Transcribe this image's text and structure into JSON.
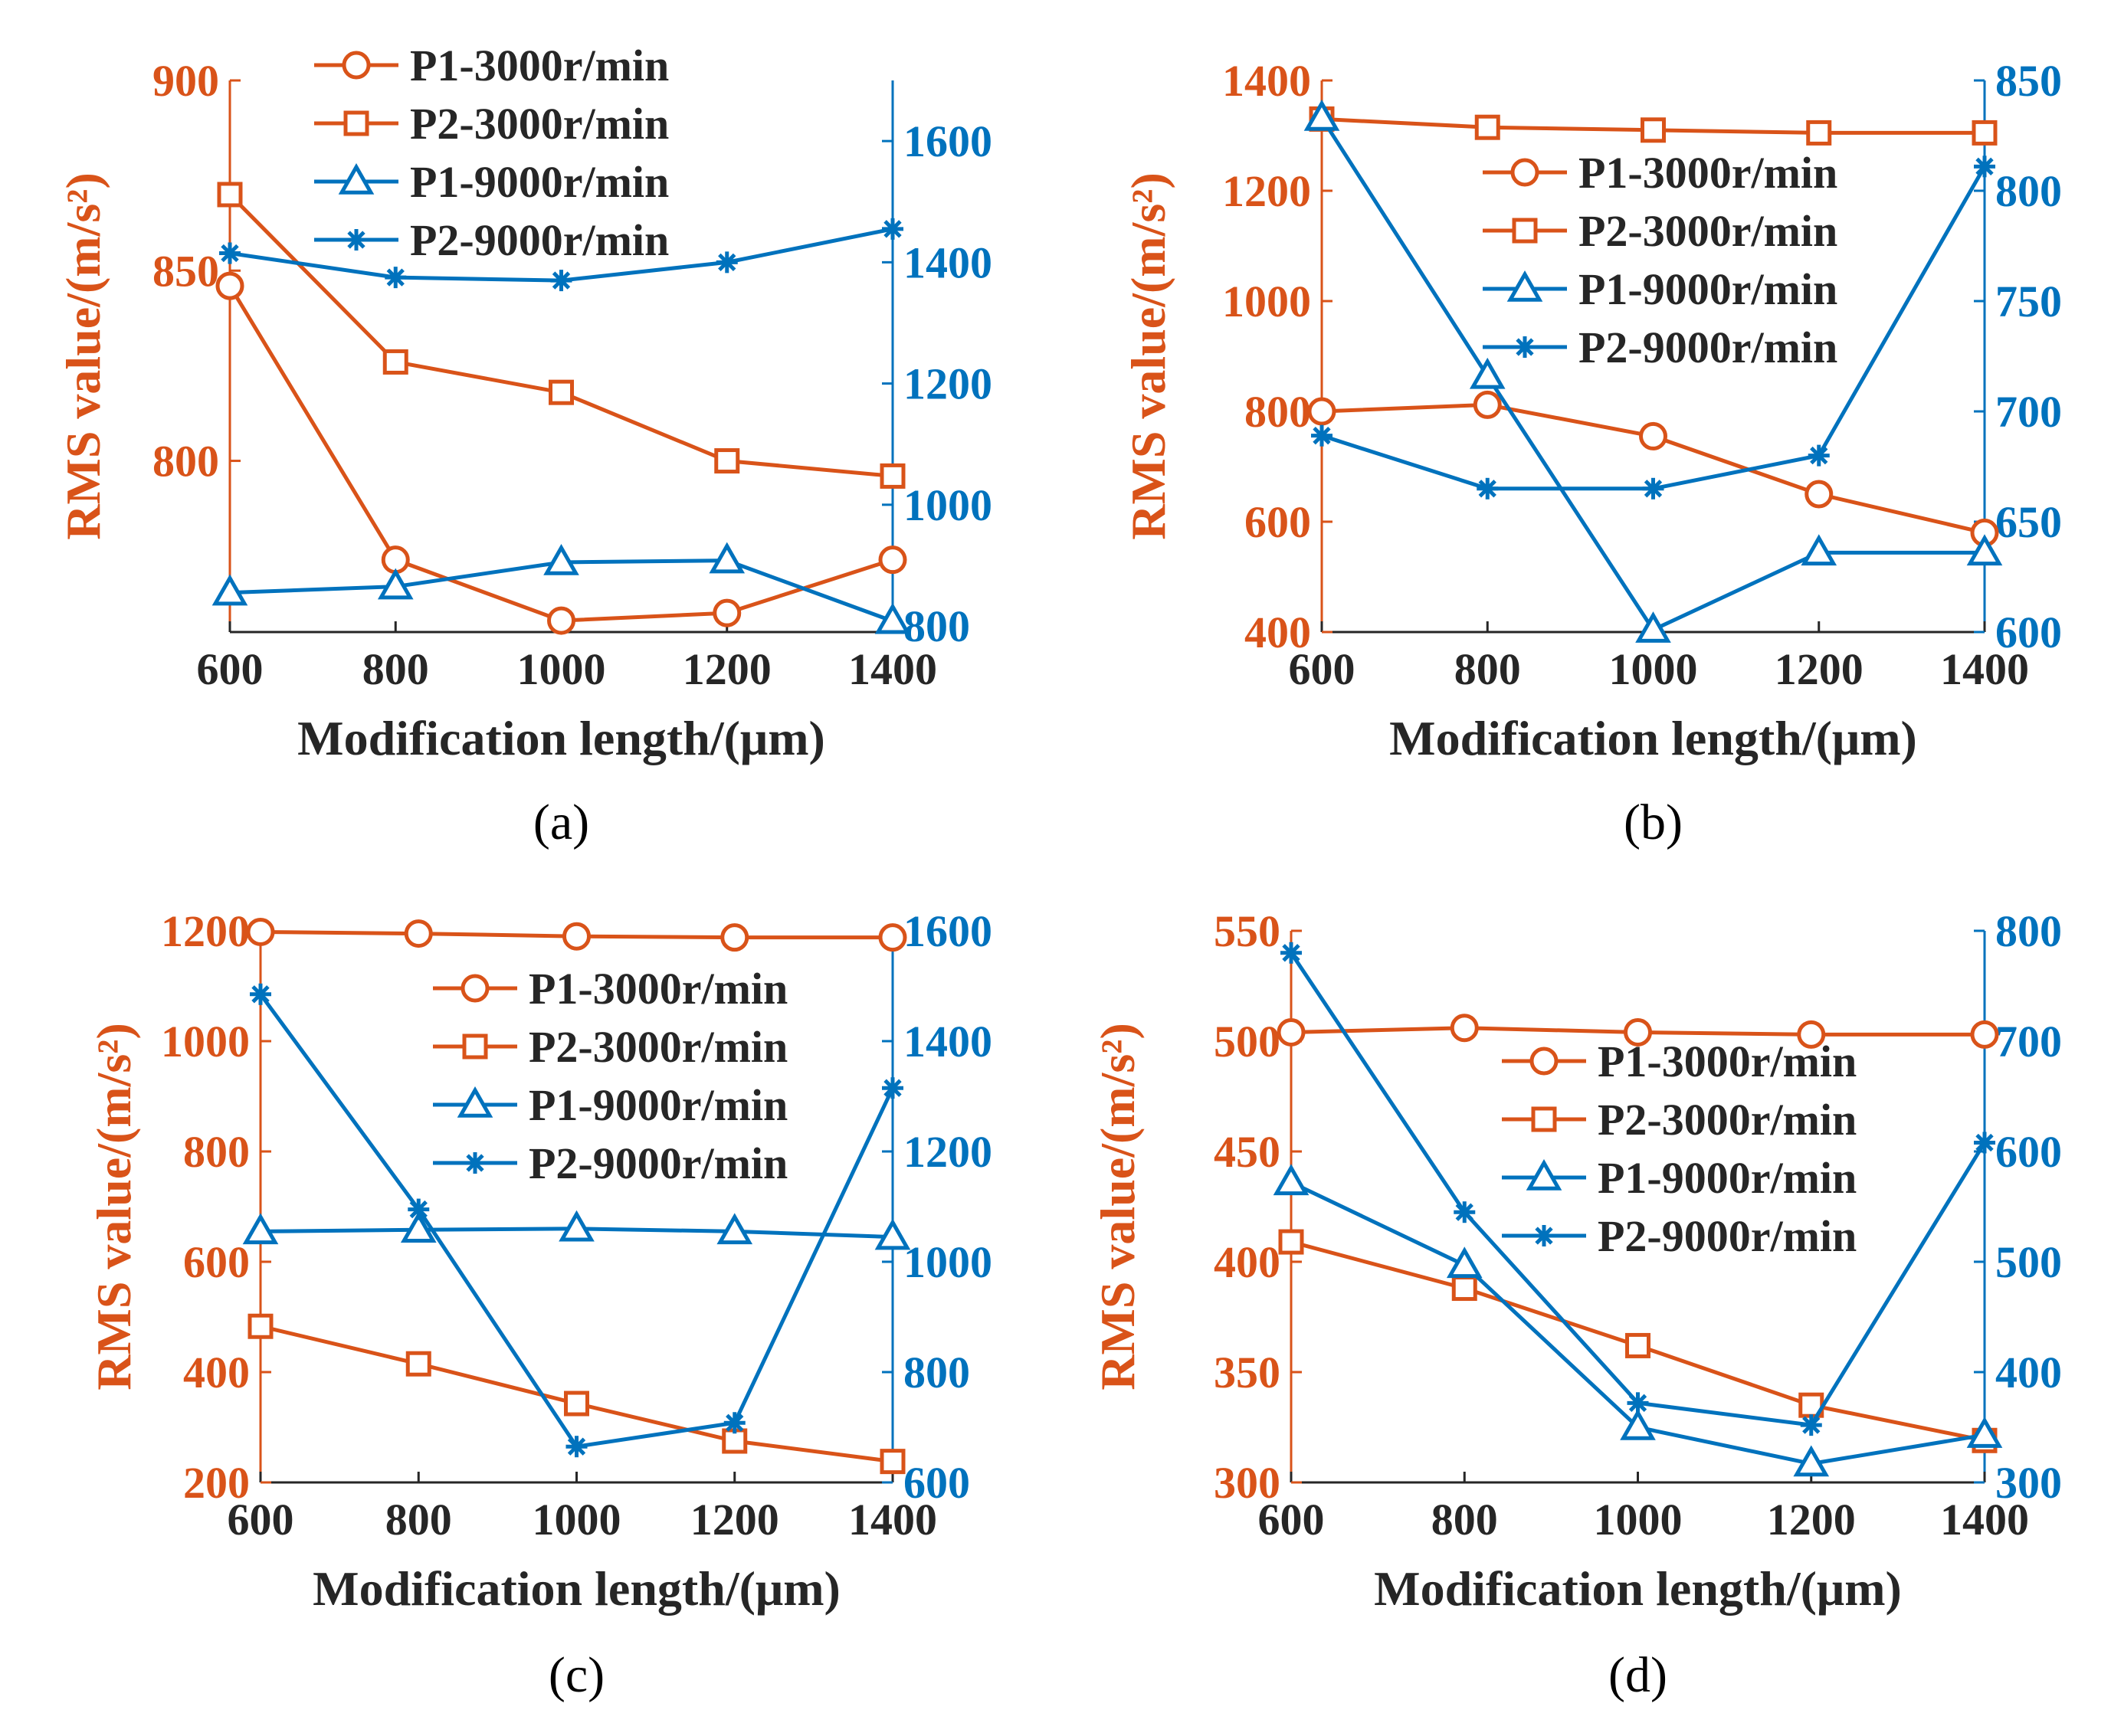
{
  "colors": {
    "left_axis": "#D95319",
    "right_axis": "#0072BD",
    "text": "#262626",
    "axis_line": "#262626"
  },
  "chart_data": [
    {
      "id": "a",
      "type": "line",
      "panel_label": "(a)",
      "xlabel": "Modification length/(μm)",
      "ylabel_left": "RMS value/(m/s²)",
      "x": [
        600,
        800,
        1000,
        1200,
        1400
      ],
      "xlim": [
        600,
        1400
      ],
      "xticks": [
        "600",
        "800",
        "1000",
        "1200",
        "1400"
      ],
      "ylim_left": [
        755,
        900
      ],
      "yticks_left": [
        "800",
        "850",
        "900"
      ],
      "ylim_right": [
        790,
        1700
      ],
      "yticks_right": [
        "800",
        "1000",
        "1200",
        "1400",
        "1600"
      ],
      "legend_position": "top-left",
      "series": [
        {
          "name": "P1-3000r/min",
          "axis": "left",
          "marker": "circle",
          "values": [
            846,
            774,
            758,
            760,
            774
          ]
        },
        {
          "name": "P2-3000r/min",
          "axis": "left",
          "marker": "square",
          "values": [
            870,
            826,
            818,
            800,
            796
          ]
        },
        {
          "name": "P1-9000r/min",
          "axis": "right",
          "marker": "triangle",
          "values": [
            855,
            865,
            905,
            908,
            808
          ]
        },
        {
          "name": "P2-9000r/min",
          "axis": "right",
          "marker": "asterisk",
          "values": [
            1415,
            1375,
            1370,
            1400,
            1455
          ]
        }
      ]
    },
    {
      "id": "b",
      "type": "line",
      "panel_label": "(b)",
      "xlabel": "Modification length/(μm)",
      "ylabel_left": "RMS value/(m/s²)",
      "x": [
        600,
        800,
        1000,
        1200,
        1400
      ],
      "xlim": [
        600,
        1400
      ],
      "xticks": [
        "600",
        "800",
        "1000",
        "1200",
        "1400"
      ],
      "ylim_left": [
        400,
        1400
      ],
      "yticks_left": [
        "400",
        "600",
        "800",
        "1000",
        "1200",
        "1400"
      ],
      "ylim_right": [
        600,
        850
      ],
      "yticks_right": [
        "600",
        "650",
        "700",
        "750",
        "800",
        "850"
      ],
      "legend_position": "top-right",
      "series": [
        {
          "name": "P1-3000r/min",
          "axis": "left",
          "marker": "circle",
          "values": [
            800,
            812,
            755,
            650,
            580
          ]
        },
        {
          "name": "P2-3000r/min",
          "axis": "left",
          "marker": "square",
          "values": [
            1330,
            1315,
            1310,
            1305,
            1305
          ]
        },
        {
          "name": "P1-9000r/min",
          "axis": "right",
          "marker": "triangle",
          "values": [
            833,
            716,
            601,
            636,
            636
          ]
        },
        {
          "name": "P2-9000r/min",
          "axis": "right",
          "marker": "asterisk",
          "values": [
            689,
            665,
            665,
            680,
            811
          ]
        }
      ]
    },
    {
      "id": "c",
      "type": "line",
      "panel_label": "(c)",
      "xlabel": "Modification length/(μm)",
      "ylabel_left": "RMS value/(m/s²)",
      "x": [
        600,
        800,
        1000,
        1200,
        1400
      ],
      "xlim": [
        600,
        1400
      ],
      "xticks": [
        "600",
        "800",
        "1000",
        "1200",
        "1400"
      ],
      "ylim_left": [
        200,
        1200
      ],
      "yticks_left": [
        "200",
        "400",
        "600",
        "800",
        "1000",
        "1200"
      ],
      "ylim_right": [
        600,
        1600
      ],
      "yticks_right": [
        "600",
        "800",
        "1000",
        "1200",
        "1400",
        "1600"
      ],
      "legend_position": "top-right",
      "series": [
        {
          "name": "P1-3000r/min",
          "axis": "left",
          "marker": "circle",
          "values": [
            1198,
            1195,
            1190,
            1188,
            1188
          ]
        },
        {
          "name": "P2-3000r/min",
          "axis": "left",
          "marker": "square",
          "values": [
            483,
            415,
            343,
            275,
            238
          ]
        },
        {
          "name": "P1-9000r/min",
          "axis": "right",
          "marker": "triangle",
          "values": [
            1055,
            1058,
            1060,
            1055,
            1045
          ]
        },
        {
          "name": "P2-9000r/min",
          "axis": "right",
          "marker": "asterisk",
          "values": [
            1485,
            1095,
            665,
            708,
            1315
          ]
        }
      ]
    },
    {
      "id": "d",
      "type": "line",
      "panel_label": "(d)",
      "xlabel": "Modification length/(μm)",
      "ylabel_left": "RMS value/(m/s²)",
      "x": [
        600,
        800,
        1000,
        1200,
        1400
      ],
      "xlim": [
        600,
        1400
      ],
      "xticks": [
        "600",
        "800",
        "1000",
        "1200",
        "1400"
      ],
      "ylim_left": [
        300,
        550
      ],
      "yticks_left": [
        "300",
        "350",
        "400",
        "450",
        "500",
        "550"
      ],
      "ylim_right": [
        300,
        800
      ],
      "yticks_right": [
        "300",
        "400",
        "500",
        "600",
        "700",
        "800"
      ],
      "legend_position": "top-right",
      "series": [
        {
          "name": "P1-3000r/min",
          "axis": "left",
          "marker": "circle",
          "values": [
            504,
            506,
            504,
            503,
            503
          ]
        },
        {
          "name": "P2-3000r/min",
          "axis": "left",
          "marker": "square",
          "values": [
            409,
            388,
            362,
            335,
            319
          ]
        },
        {
          "name": "P1-9000r/min",
          "axis": "right",
          "marker": "triangle",
          "values": [
            572,
            497,
            350,
            317,
            343
          ]
        },
        {
          "name": "P2-9000r/min",
          "axis": "right",
          "marker": "asterisk",
          "values": [
            780,
            545,
            372,
            352,
            608
          ]
        }
      ]
    }
  ]
}
